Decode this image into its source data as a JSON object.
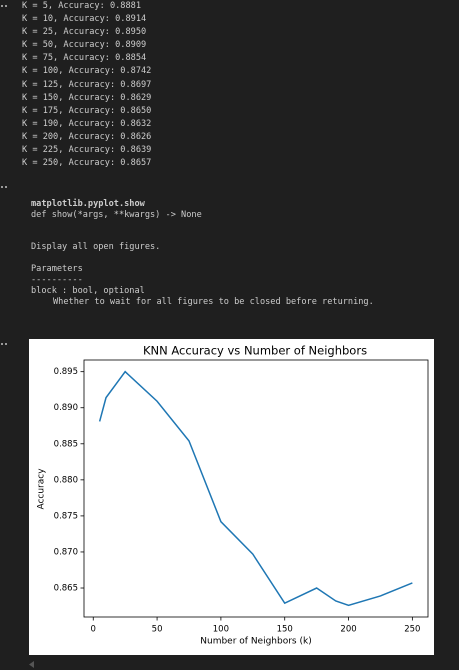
{
  "output_lines": [
    "K = 5, Accuracy: 0.8881",
    "K = 10, Accuracy: 0.8914",
    "K = 25, Accuracy: 0.8950",
    "K = 50, Accuracy: 0.8909",
    "K = 75, Accuracy: 0.8854",
    "K = 100, Accuracy: 0.8742",
    "K = 125, Accuracy: 0.8697",
    "K = 150, Accuracy: 0.8629",
    "K = 175, Accuracy: 0.8650",
    "K = 190, Accuracy: 0.8632",
    "K = 200, Accuracy: 0.8626",
    "K = 225, Accuracy: 0.8639",
    "K = 250, Accuracy: 0.8657"
  ],
  "docstring": {
    "title": "matplotlib.pyplot.show",
    "signature": "def show(*args, **kwargs) -> None",
    "description": "Display all open figures.",
    "section": "Parameters",
    "rule": "----------",
    "param": "block : bool, optional",
    "param_description": "Whether to wait for all figures to be closed before returning."
  },
  "chart_data": {
    "type": "line",
    "title": "KNN Accuracy vs Number of Neighbors",
    "x_label": "Number of Neighbors (k)",
    "y_label": "Accuracy",
    "x": [
      5,
      10,
      25,
      50,
      75,
      100,
      125,
      150,
      175,
      190,
      200,
      225,
      250
    ],
    "series": [
      {
        "name": "Accuracy",
        "color": "#1f77b4",
        "values": [
          0.8881,
          0.8914,
          0.895,
          0.8909,
          0.8854,
          0.8742,
          0.8697,
          0.8629,
          0.865,
          0.8632,
          0.8626,
          0.8639,
          0.8657
        ]
      }
    ],
    "xlim": [
      -7.25,
      262.25
    ],
    "xticks": [
      0,
      50,
      100,
      150,
      200,
      250
    ],
    "ylim": [
      0.86098,
      0.89662
    ],
    "yticks": [
      0.865,
      {
        "value": 0.87,
        "label": "0.870"
      },
      0.875,
      {
        "value": 0.88,
        "label": "0.880"
      },
      0.885,
      {
        "value": 0.89,
        "label": "0.890"
      },
      0.895
    ],
    "grid": false
  }
}
